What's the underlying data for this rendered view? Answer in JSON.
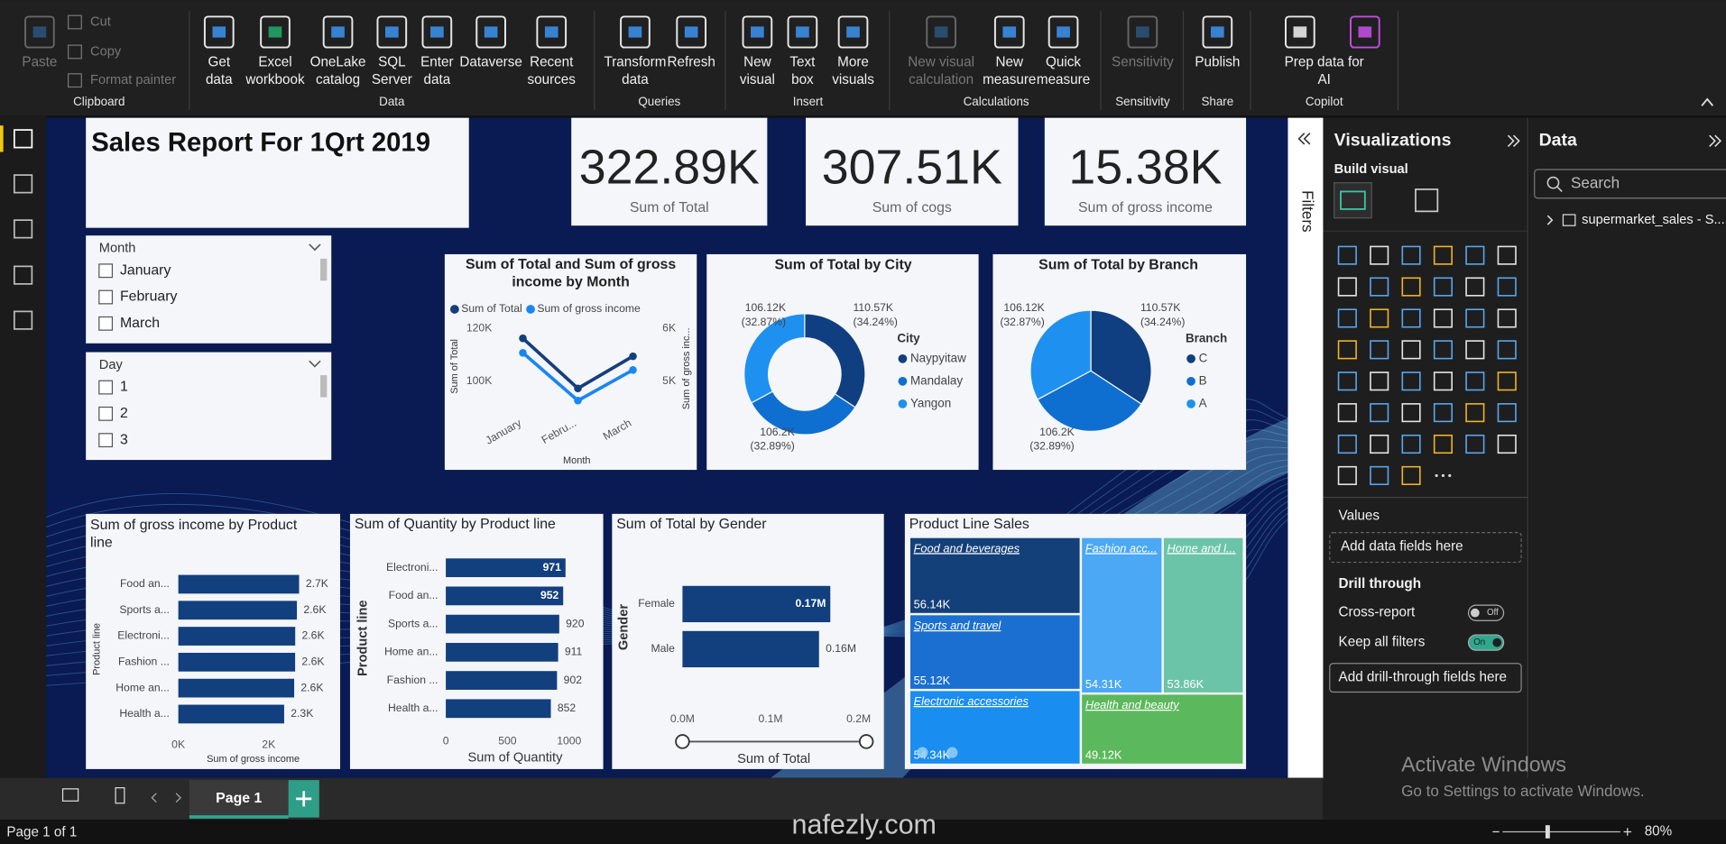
{
  "ribbon": {
    "groups": [
      {
        "name": "Clipboard",
        "buttons": [
          {
            "label": [
              "Paste"
            ],
            "disabled": true
          },
          {
            "label": [
              "Cut"
            ],
            "disabled": true
          },
          {
            "label": [
              "Copy"
            ],
            "disabled": true
          },
          {
            "label": [
              "Format painter"
            ],
            "disabled": true
          }
        ]
      },
      {
        "name": "Data",
        "buttons": [
          {
            "label": [
              "Get",
              "data"
            ]
          },
          {
            "label": [
              "Excel",
              "workbook"
            ]
          },
          {
            "label": [
              "OneLake",
              "catalog"
            ]
          },
          {
            "label": [
              "SQL",
              "Server"
            ]
          },
          {
            "label": [
              "Enter",
              "data"
            ]
          },
          {
            "label": [
              "Dataverse"
            ]
          },
          {
            "label": [
              "Recent",
              "sources"
            ]
          }
        ]
      },
      {
        "name": "Queries",
        "buttons": [
          {
            "label": [
              "Transform",
              "data"
            ]
          },
          {
            "label": [
              "Refresh"
            ]
          }
        ]
      },
      {
        "name": "Insert",
        "buttons": [
          {
            "label": [
              "New",
              "visual"
            ]
          },
          {
            "label": [
              "Text",
              "box"
            ]
          },
          {
            "label": [
              "More",
              "visuals"
            ]
          }
        ]
      },
      {
        "name": "Calculations",
        "buttons": [
          {
            "label": [
              "New visual",
              "calculation"
            ],
            "disabled": true
          },
          {
            "label": [
              "New",
              "measure"
            ]
          },
          {
            "label": [
              "Quick",
              "measure"
            ]
          }
        ]
      },
      {
        "name": "Sensitivity",
        "buttons": [
          {
            "label": [
              "Sensitivity"
            ],
            "disabled": true
          }
        ]
      },
      {
        "name": "Share",
        "buttons": [
          {
            "label": [
              "Publish"
            ]
          }
        ]
      },
      {
        "name": "Copilot",
        "buttons": [
          {
            "label": [
              "Prep data for",
              "AI"
            ]
          }
        ]
      }
    ]
  },
  "report": {
    "title": "Sales Report For 1Qrt 2019",
    "cards": [
      {
        "value": "322.89K",
        "label": "Sum of Total"
      },
      {
        "value": "307.51K",
        "label": "Sum of cogs"
      },
      {
        "value": "15.38K",
        "label": "Sum of gross income"
      }
    ],
    "slicers": [
      {
        "title": "Month",
        "items": [
          "January",
          "February",
          "March"
        ]
      },
      {
        "title": "Day",
        "items": [
          "1",
          "2",
          "3"
        ]
      }
    ],
    "charts": [
      {
        "type": "line",
        "title": "Sum of Total and Sum of gross income by Month",
        "categories": [
          "January",
          "Febru...",
          "March"
        ],
        "series": [
          {
            "name": "Sum of Total",
            "color": "#143f7c",
            "values": [
              116291,
              97219,
              109456
            ]
          },
          {
            "name": "Sum of gross income",
            "color": "#1a86f0",
            "axis": "y2",
            "values": [
              5538,
              4630,
              5212
            ]
          }
        ],
        "ylim": [
          88000,
          124000
        ],
        "yticks": [
          {
            "value": 100000,
            "label": "100K"
          },
          {
            "value": 120000,
            "label": "120K"
          }
        ],
        "y2lim": [
          4400,
          6200
        ],
        "y2ticks": [
          {
            "value": 5000,
            "label": "5K"
          },
          {
            "value": 6000,
            "label": "6K"
          }
        ],
        "x_label": "Month",
        "y_label": "Sum of Total",
        "y2_label": "Sum of gross inc..."
      },
      {
        "type": "donut",
        "title": "Sum of Total by City",
        "legend_title": "City",
        "categories": [
          "Naypyitaw",
          "Mandalay",
          "Yangon"
        ],
        "values": [
          110570,
          106200,
          106120
        ],
        "value_labels": [
          "110.57K",
          "106.2K",
          "106.12K"
        ],
        "percent_labels": [
          "(34.24%)",
          "(32.89%)",
          "(32.87%)"
        ],
        "colors": [
          "#0f3f80",
          "#0f6fd0",
          "#1e90f0"
        ]
      },
      {
        "type": "pie",
        "title": "Sum of Total by Branch",
        "legend_title": "Branch",
        "categories": [
          "C",
          "B",
          "A"
        ],
        "values": [
          110570,
          106200,
          106120
        ],
        "value_labels": [
          "110.57K",
          "106.2K",
          "106.12K"
        ],
        "percent_labels": [
          "(34.24%)",
          "(32.89%)",
          "(32.87%)"
        ],
        "colors": [
          "#0f3f80",
          "#0f6fd0",
          "#1e90f0"
        ]
      },
      {
        "type": "hbar",
        "title": "Sum of gross income by Product line",
        "categories": [
          "Food an...",
          "Sports a...",
          "Electroni...",
          "Fashion ...",
          "Home an...",
          "Health a..."
        ],
        "values": [
          2674,
          2625,
          2588,
          2586,
          2565,
          2343
        ],
        "value_labels": [
          "2.7K",
          "2.6K",
          "2.6K",
          "2.6K",
          "2.6K",
          "2.3K"
        ],
        "xlim": [
          0,
          2900
        ],
        "xticks": [
          {
            "value": 0,
            "label": "0K"
          },
          {
            "value": 2000,
            "label": "2K"
          }
        ],
        "x_label": "Sum of gross income",
        "y_label": "Product line",
        "color": "#123f7e"
      },
      {
        "type": "hbar",
        "title": "Sum of Quantity by Product line",
        "categories": [
          "Electroni...",
          "Food an...",
          "Sports a...",
          "Home an...",
          "Fashion ...",
          "Health a..."
        ],
        "values": [
          971,
          952,
          920,
          911,
          902,
          852
        ],
        "xlim": [
          0,
          1000
        ],
        "xticks": [
          0,
          500,
          1000
        ],
        "x_label": "Sum of Quantity",
        "y_label": "Product line",
        "color": "#123f7e"
      },
      {
        "type": "hbar",
        "title": "Sum of Total by Gender",
        "categories": [
          "Female",
          "Male"
        ],
        "values": [
          167883,
          155084
        ],
        "value_labels": [
          "0.17M",
          "0.16M"
        ],
        "xlim": [
          0,
          200000
        ],
        "xticks": [
          {
            "value": 0,
            "label": "0.0M"
          },
          {
            "value": 100000,
            "label": "0.1M"
          },
          {
            "value": 200000,
            "label": "0.2M"
          }
        ],
        "x_label": "Sum of Total",
        "y_label": "Gender",
        "color": "#123f7e"
      },
      {
        "type": "treemap",
        "title": "Product Line Sales",
        "categories": [
          "Food and beverages",
          "Sports and travel",
          "Electronic accessories",
          "Fashion acc...",
          "Home and l...",
          "Health and beauty"
        ],
        "values": [
          56140,
          55120,
          54340,
          54310,
          53860,
          49120
        ],
        "value_labels": [
          "56.14K",
          "55.12K",
          "54.34K",
          "54.31K",
          "53.86K",
          "49.12K"
        ],
        "colors": [
          "#14407a",
          "#1a6fd0",
          "#1a8df0",
          "#4aa8f4",
          "#6cc4a8",
          "#5cb85c"
        ]
      }
    ]
  },
  "filters": {
    "title": "Filters"
  },
  "visualizations": {
    "title": "Visualizations",
    "build_visual": "Build visual",
    "values_title": "Values",
    "values_placeholder": "Add data fields here",
    "drill_title": "Drill through",
    "toggles": [
      {
        "label": "Cross-report",
        "state": "Off"
      },
      {
        "label": "Keep all filters",
        "state": "On"
      }
    ],
    "drill_placeholder": "Add drill-through fields here"
  },
  "data_pane": {
    "title": "Data",
    "search": "Search",
    "tables": [
      "supermarket_sales - S..."
    ]
  },
  "pages": {
    "tabs": [
      "Page 1"
    ],
    "status": "Page 1 of 1",
    "zoom": "80%"
  },
  "watermark": {
    "title": "Activate Windows",
    "subtitle": "Go to Settings to activate Windows.",
    "site": "nafezly.com"
  }
}
